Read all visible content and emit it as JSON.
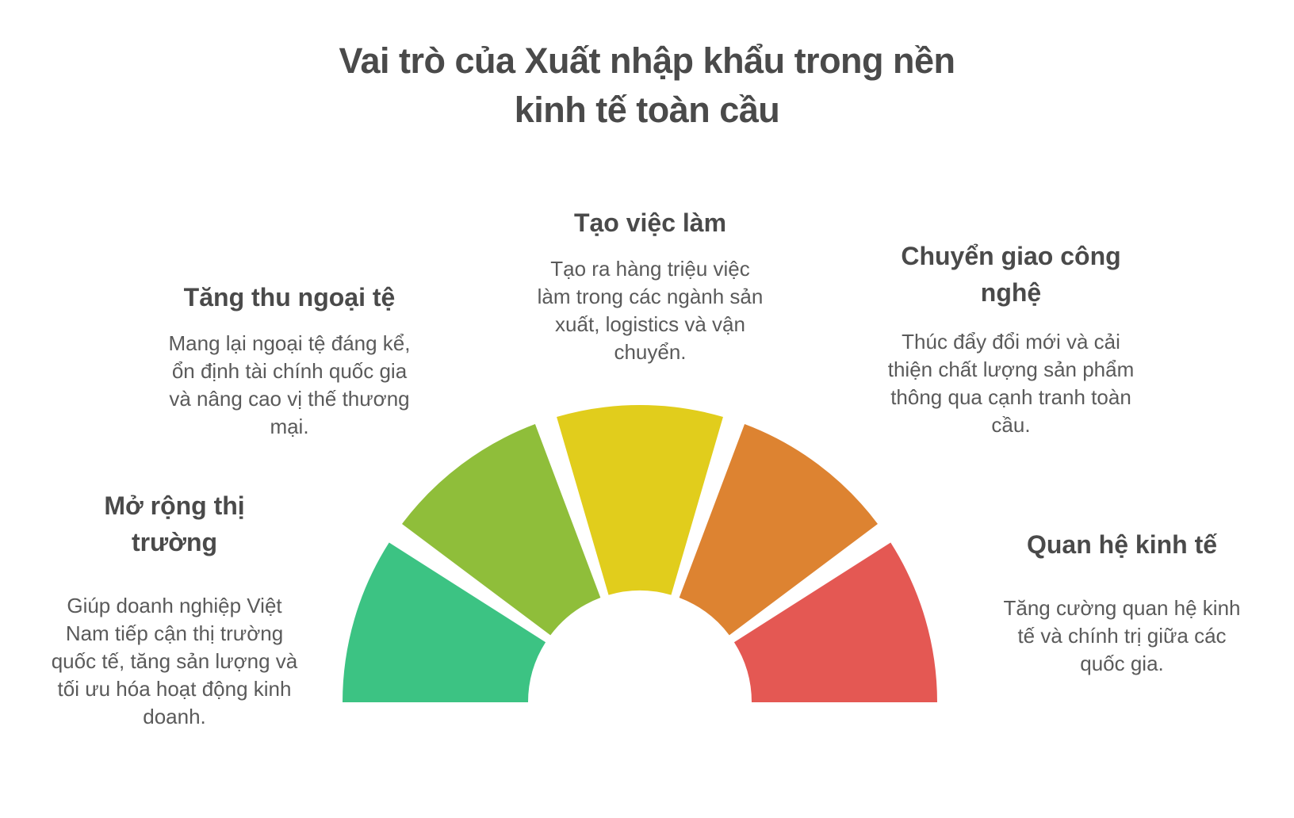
{
  "title": {
    "lines": [
      "Vai trò của Xuất nhập khẩu trong nền",
      "kinh tế toàn cầu"
    ]
  },
  "colors": {
    "background": "#ffffff",
    "heading_text": "#4a4a4a",
    "body_text": "#5a5a5a"
  },
  "sections": [
    {
      "id": "tang-thu-ngoai-te",
      "heading": "Tăng thu ngoại tệ",
      "body": "Mang lại ngoại tệ đáng kể, ổn định tài chính quốc gia và nâng cao vị thế thương mại.",
      "segment_color": "#8fbe3a"
    },
    {
      "id": "tao-viec-lam",
      "heading": "Tạo việc làm",
      "body": "Tạo ra hàng triệu việc làm trong các ngành sản xuất, logistics và vận chuyển.",
      "segment_color": "#e1cd1c"
    },
    {
      "id": "chuyen-giao-cong-nghe",
      "heading": "Chuyển giao công nghệ",
      "body": "Thúc đẩy đổi mới và cải thiện chất lượng sản phẩm thông qua cạnh tranh toàn cầu.",
      "segment_color": "#dd8331"
    },
    {
      "id": "mo-rong-thi-truong",
      "heading": "Mở rộng thị trường",
      "body": "Giúp doanh nghiệp Việt Nam tiếp cận thị trường quốc tế, tăng sản lượng và tối ưu hóa hoạt động kinh doanh.",
      "segment_color": "#3cc383"
    },
    {
      "id": "quan-he-kinh-te",
      "heading": "Quan hệ kinh tế",
      "body": "Tăng cường quan hệ kinh tế và chính trị giữa các quốc gia.",
      "segment_color": "#e45853"
    }
  ],
  "gauge": {
    "type": "semicircle-fan",
    "segments": [
      {
        "name": "mo-rong-thi-truong",
        "color": "#3cc383"
      },
      {
        "name": "tang-thu-ngoai-te",
        "color": "#8fbe3a"
      },
      {
        "name": "tao-viec-lam",
        "color": "#e1cd1c"
      },
      {
        "name": "chuyen-giao-cong-nghe",
        "color": "#dd8331"
      },
      {
        "name": "quan-he-kinh-te",
        "color": "#e45853"
      }
    ]
  }
}
